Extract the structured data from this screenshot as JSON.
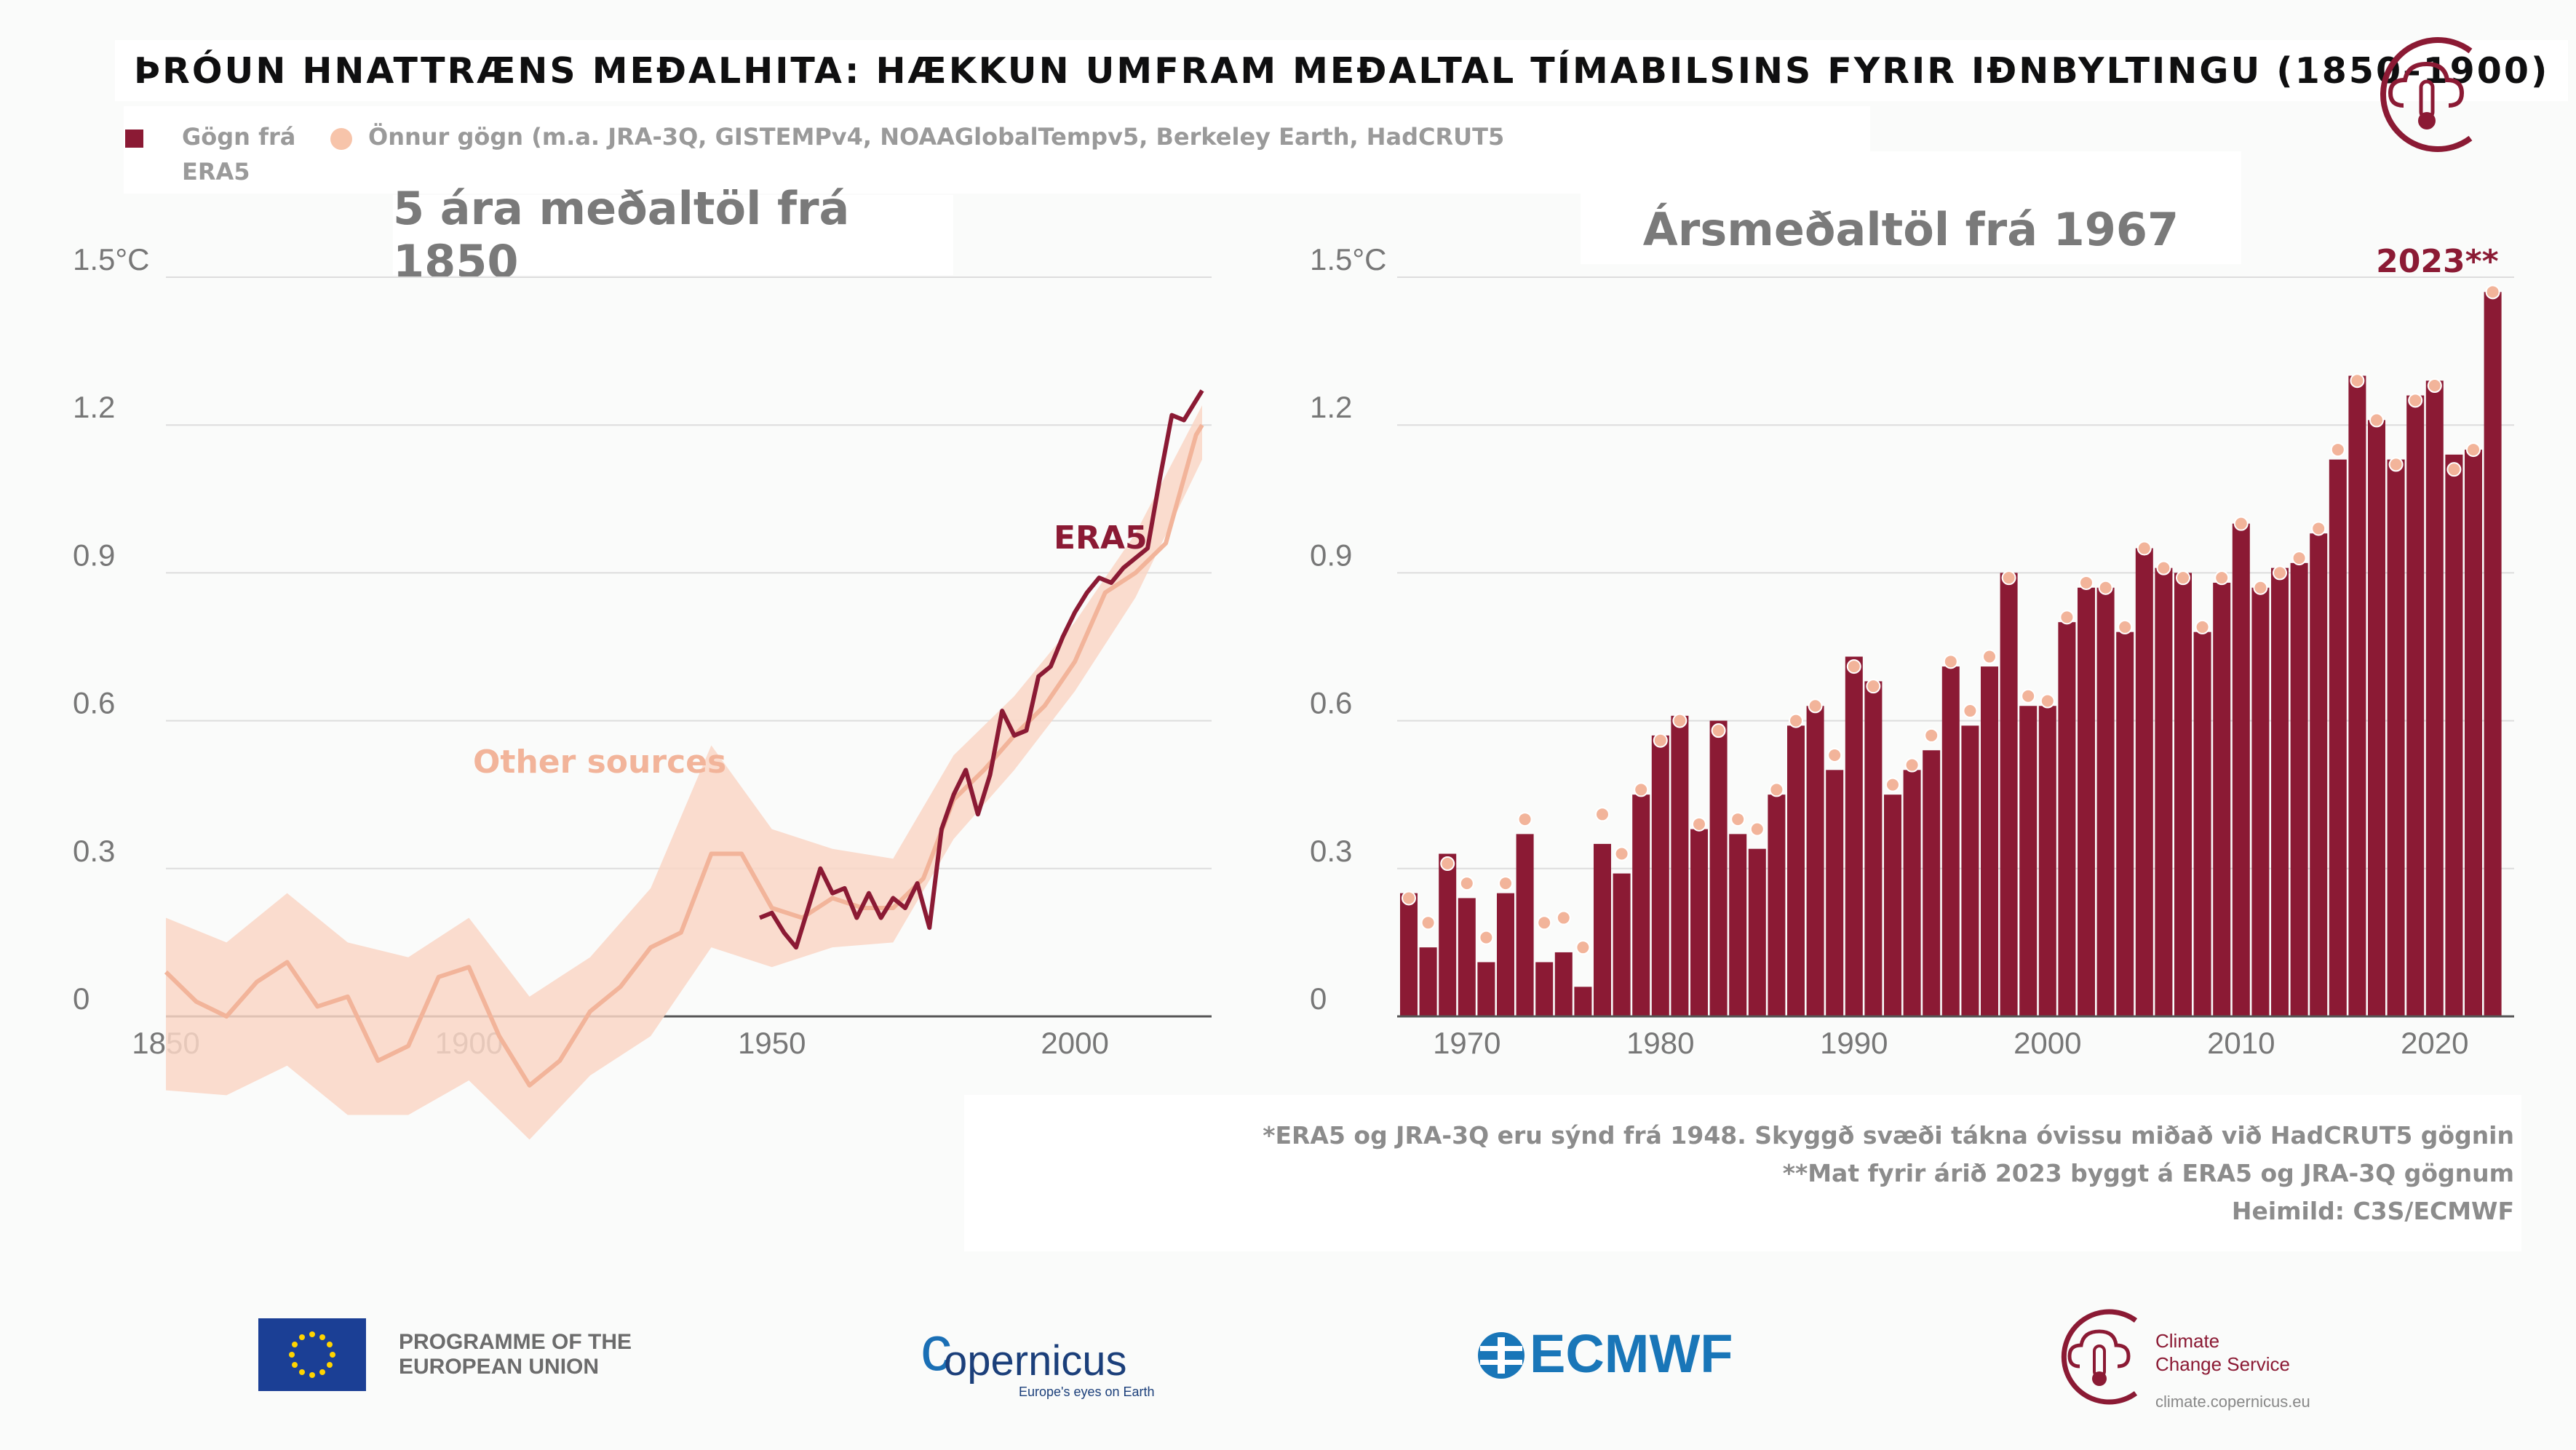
{
  "title": "Þróun hnattræns meðalhita: hækkun umfram meðaltal tímabilsins fyrir iðnbyltingu (1850–1900)",
  "legend": {
    "era5": "Gögn frá ERA5",
    "others": "Önnur gögn (m.a.  JRA-3Q, GISTEMPv4, NOAAGlobalTempv5, Berkeley Earth, HadCRUT5"
  },
  "colors": {
    "era5": "#8b1a34",
    "others": "#f2b49a",
    "band": "#f9d6c6",
    "grid": "#dddddd"
  },
  "notes": [
    "*ERA5 og JRA-3Q eru sýnd frá 1948. Skyggð svæði tákna óvissu miðað við HadCRUT5 gögnin",
    "**Mat fyrir árið 2023 byggt á ERA5 og JRA-3Q gögnum",
    "Heimild: C3S/ECMWF"
  ],
  "footer": {
    "eu_line1": "PROGRAMME OF THE",
    "eu_line2": "EUROPEAN UNION",
    "copernicus": "opernicus",
    "copernicus_c": "c",
    "copernicus_tagline": "Europe's eyes on Earth",
    "ecmwf": "ECMWF",
    "climate_line1": "Climate",
    "climate_line2": "Change Service",
    "climate_url": "climate.copernicus.eu"
  },
  "chart_data": [
    {
      "type": "line",
      "title": "5 ára meðaltöl frá 1850",
      "xlabel": "",
      "ylabel": "",
      "x_ticks": [
        "1850",
        "1900",
        "1950",
        "2000"
      ],
      "y_ticks": [
        "0",
        "0.3",
        "0.6",
        "0.9",
        "1.2",
        "1.5°C"
      ],
      "xlim": [
        1850,
        2023
      ],
      "ylim": [
        0,
        1.5
      ],
      "grid": true,
      "annotations": [
        "ERA5",
        "Other sources"
      ],
      "series": [
        {
          "name": "ERA5",
          "x": [
            1948,
            1950,
            1952,
            1954,
            1956,
            1958,
            1960,
            1962,
            1964,
            1966,
            1968,
            1970,
            1972,
            1974,
            1976,
            1978,
            1980,
            1982,
            1984,
            1986,
            1988,
            1990,
            1992,
            1994,
            1996,
            1998,
            2000,
            2002,
            2004,
            2006,
            2008,
            2010,
            2012,
            2014,
            2016,
            2018,
            2020,
            2021
          ],
          "y": [
            0.2,
            0.21,
            0.17,
            0.14,
            0.22,
            0.3,
            0.25,
            0.26,
            0.2,
            0.25,
            0.2,
            0.24,
            0.22,
            0.27,
            0.18,
            0.38,
            0.45,
            0.5,
            0.41,
            0.49,
            0.62,
            0.57,
            0.58,
            0.69,
            0.71,
            0.77,
            0.82,
            0.86,
            0.89,
            0.88,
            0.91,
            0.93,
            0.95,
            1.09,
            1.22,
            1.21,
            1.25,
            1.27
          ]
        },
        {
          "name": "Other sources",
          "x": [
            1850,
            1855,
            1860,
            1865,
            1870,
            1875,
            1880,
            1885,
            1890,
            1895,
            1900,
            1905,
            1910,
            1915,
            1920,
            1925,
            1930,
            1935,
            1940,
            1945,
            1950,
            1955,
            1960,
            1965,
            1970,
            1975,
            1980,
            1985,
            1990,
            1995,
            2000,
            2005,
            2010,
            2015,
            2020,
            2021
          ],
          "y": [
            0.09,
            0.03,
            0.0,
            0.07,
            0.11,
            0.02,
            0.04,
            -0.09,
            -0.06,
            0.08,
            0.1,
            -0.04,
            -0.14,
            -0.09,
            0.01,
            0.06,
            0.14,
            0.17,
            0.33,
            0.33,
            0.22,
            0.2,
            0.24,
            0.22,
            0.22,
            0.28,
            0.44,
            0.5,
            0.57,
            0.63,
            0.72,
            0.86,
            0.9,
            0.96,
            1.18,
            1.2
          ]
        }
      ],
      "uncertainty_band": {
        "x": [
          1850,
          1860,
          1870,
          1880,
          1890,
          1900,
          1910,
          1920,
          1930,
          1940,
          1950,
          1960,
          1970,
          1980,
          1990,
          2000,
          2010,
          2021
        ],
        "lower": [
          -0.15,
          -0.16,
          -0.1,
          -0.2,
          -0.2,
          -0.13,
          -0.25,
          -0.12,
          -0.04,
          0.14,
          0.1,
          0.14,
          0.15,
          0.36,
          0.5,
          0.66,
          0.85,
          1.13
        ],
        "upper": [
          0.2,
          0.15,
          0.25,
          0.15,
          0.12,
          0.2,
          0.04,
          0.12,
          0.26,
          0.55,
          0.38,
          0.34,
          0.32,
          0.53,
          0.65,
          0.8,
          0.98,
          1.24
        ]
      }
    },
    {
      "type": "bar",
      "title": "Ársmeðaltöl frá 1967",
      "xlabel": "",
      "ylabel": "",
      "x_ticks": [
        "1970",
        "1980",
        "1990",
        "2000",
        "2010",
        "2020"
      ],
      "y_ticks": [
        "0",
        "0.3",
        "0.6",
        "0.9",
        "1.2",
        "1.5°C"
      ],
      "ylim": [
        0,
        1.5
      ],
      "grid": true,
      "annotations": [
        "2023**"
      ],
      "categories": [
        "1967",
        "1968",
        "1969",
        "1970",
        "1971",
        "1972",
        "1973",
        "1974",
        "1975",
        "1976",
        "1977",
        "1978",
        "1979",
        "1980",
        "1981",
        "1982",
        "1983",
        "1984",
        "1985",
        "1986",
        "1987",
        "1988",
        "1989",
        "1990",
        "1991",
        "1992",
        "1993",
        "1994",
        "1995",
        "1996",
        "1997",
        "1998",
        "1999",
        "2000",
        "2001",
        "2002",
        "2003",
        "2004",
        "2005",
        "2006",
        "2007",
        "2008",
        "2009",
        "2010",
        "2011",
        "2012",
        "2013",
        "2014",
        "2015",
        "2016",
        "2017",
        "2018",
        "2019",
        "2020",
        "2021",
        "2022",
        "2023"
      ],
      "series": [
        {
          "name": "ERA5",
          "values": [
            0.25,
            0.14,
            0.33,
            0.24,
            0.11,
            0.25,
            0.37,
            0.11,
            0.13,
            0.06,
            0.35,
            0.29,
            0.45,
            0.57,
            0.61,
            0.38,
            0.6,
            0.37,
            0.34,
            0.45,
            0.59,
            0.63,
            0.5,
            0.73,
            0.68,
            0.45,
            0.5,
            0.54,
            0.71,
            0.59,
            0.71,
            0.9,
            0.63,
            0.63,
            0.8,
            0.87,
            0.87,
            0.78,
            0.95,
            0.91,
            0.9,
            0.78,
            0.88,
            1.0,
            0.87,
            0.91,
            0.92,
            0.98,
            1.13,
            1.3,
            1.21,
            1.13,
            1.26,
            1.29,
            1.14,
            1.15,
            1.47
          ]
        },
        {
          "name": "Other sources",
          "values": [
            0.24,
            0.19,
            0.31,
            0.27,
            0.16,
            0.27,
            0.4,
            0.19,
            0.2,
            0.14,
            0.41,
            0.33,
            0.46,
            0.56,
            0.6,
            0.39,
            0.58,
            0.4,
            0.38,
            0.46,
            0.6,
            0.63,
            0.53,
            0.71,
            0.67,
            0.47,
            0.51,
            0.57,
            0.72,
            0.62,
            0.73,
            0.89,
            0.65,
            0.64,
            0.81,
            0.88,
            0.87,
            0.79,
            0.95,
            0.91,
            0.89,
            0.79,
            0.89,
            1.0,
            0.87,
            0.9,
            0.93,
            0.99,
            1.15,
            1.29,
            1.21,
            1.12,
            1.25,
            1.28,
            1.11,
            1.15,
            1.47
          ]
        }
      ]
    }
  ]
}
